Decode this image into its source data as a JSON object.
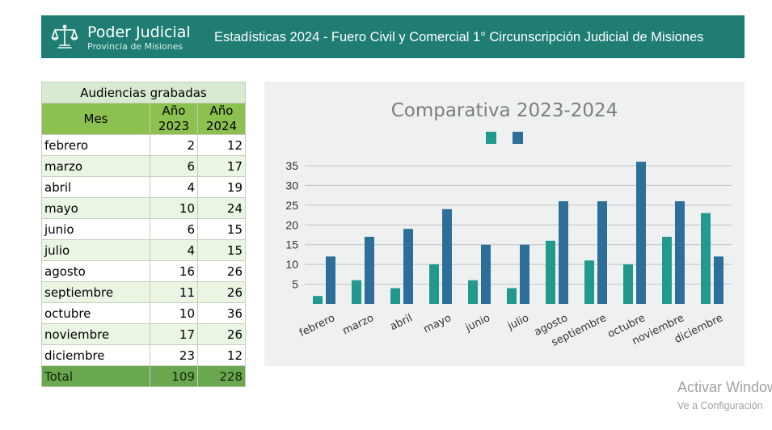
{
  "header": {
    "brand_name": "Poder Judicial",
    "brand_subtitle": "Provincia de Misiones",
    "title": "Estadísticas 2024 - Fuero Civil y Comercial 1° Circunscripción Judicial de Misiones",
    "logo_icon": "scales-of-justice-icon",
    "background": "#1f7d74"
  },
  "table": {
    "caption": "Audiencias grabadas",
    "col_month": "Mes",
    "col_2023": "Año 2023",
    "col_2024": "Año 2024",
    "rows": [
      {
        "mes": "febrero",
        "y2023": "2",
        "y2024": "12"
      },
      {
        "mes": "marzo",
        "y2023": "6",
        "y2024": "17"
      },
      {
        "mes": "abril",
        "y2023": "4",
        "y2024": "19"
      },
      {
        "mes": "mayo",
        "y2023": "10",
        "y2024": "24"
      },
      {
        "mes": "junio",
        "y2023": "6",
        "y2024": "15"
      },
      {
        "mes": "julio",
        "y2023": "4",
        "y2024": "15"
      },
      {
        "mes": "agosto",
        "y2023": "16",
        "y2024": "26"
      },
      {
        "mes": "septiembre",
        "y2023": "11",
        "y2024": "26"
      },
      {
        "mes": "octubre",
        "y2023": "10",
        "y2024": "36"
      },
      {
        "mes": "noviembre",
        "y2023": "17",
        "y2024": "26"
      },
      {
        "mes": "diciembre",
        "y2023": "23",
        "y2024": "12"
      }
    ],
    "total_label": "Total",
    "total_2023": "109",
    "total_2024": "228"
  },
  "chart_data": {
    "type": "bar",
    "title": "Comparativa 2023-2024",
    "categories": [
      "febrero",
      "marzo",
      "abril",
      "mayo",
      "junio",
      "julio",
      "agosto",
      "septiembre",
      "octubre",
      "noviembre",
      "diciembre"
    ],
    "series": [
      {
        "values": [
          2,
          6,
          4,
          10,
          6,
          4,
          16,
          11,
          10,
          17,
          23
        ],
        "color": "#23998e"
      },
      {
        "values": [
          12,
          17,
          19,
          24,
          15,
          15,
          26,
          26,
          36,
          26,
          12
        ],
        "color": "#2e6f9a"
      }
    ],
    "yticks": [
      5,
      10,
      15,
      20,
      25,
      30,
      35
    ],
    "ylim": [
      0,
      37
    ],
    "grid": true,
    "legend_position": "top",
    "xlabel": "",
    "ylabel": ""
  },
  "watermark": {
    "line1": "Activar Windows",
    "line2": "Ve a Configuración"
  }
}
